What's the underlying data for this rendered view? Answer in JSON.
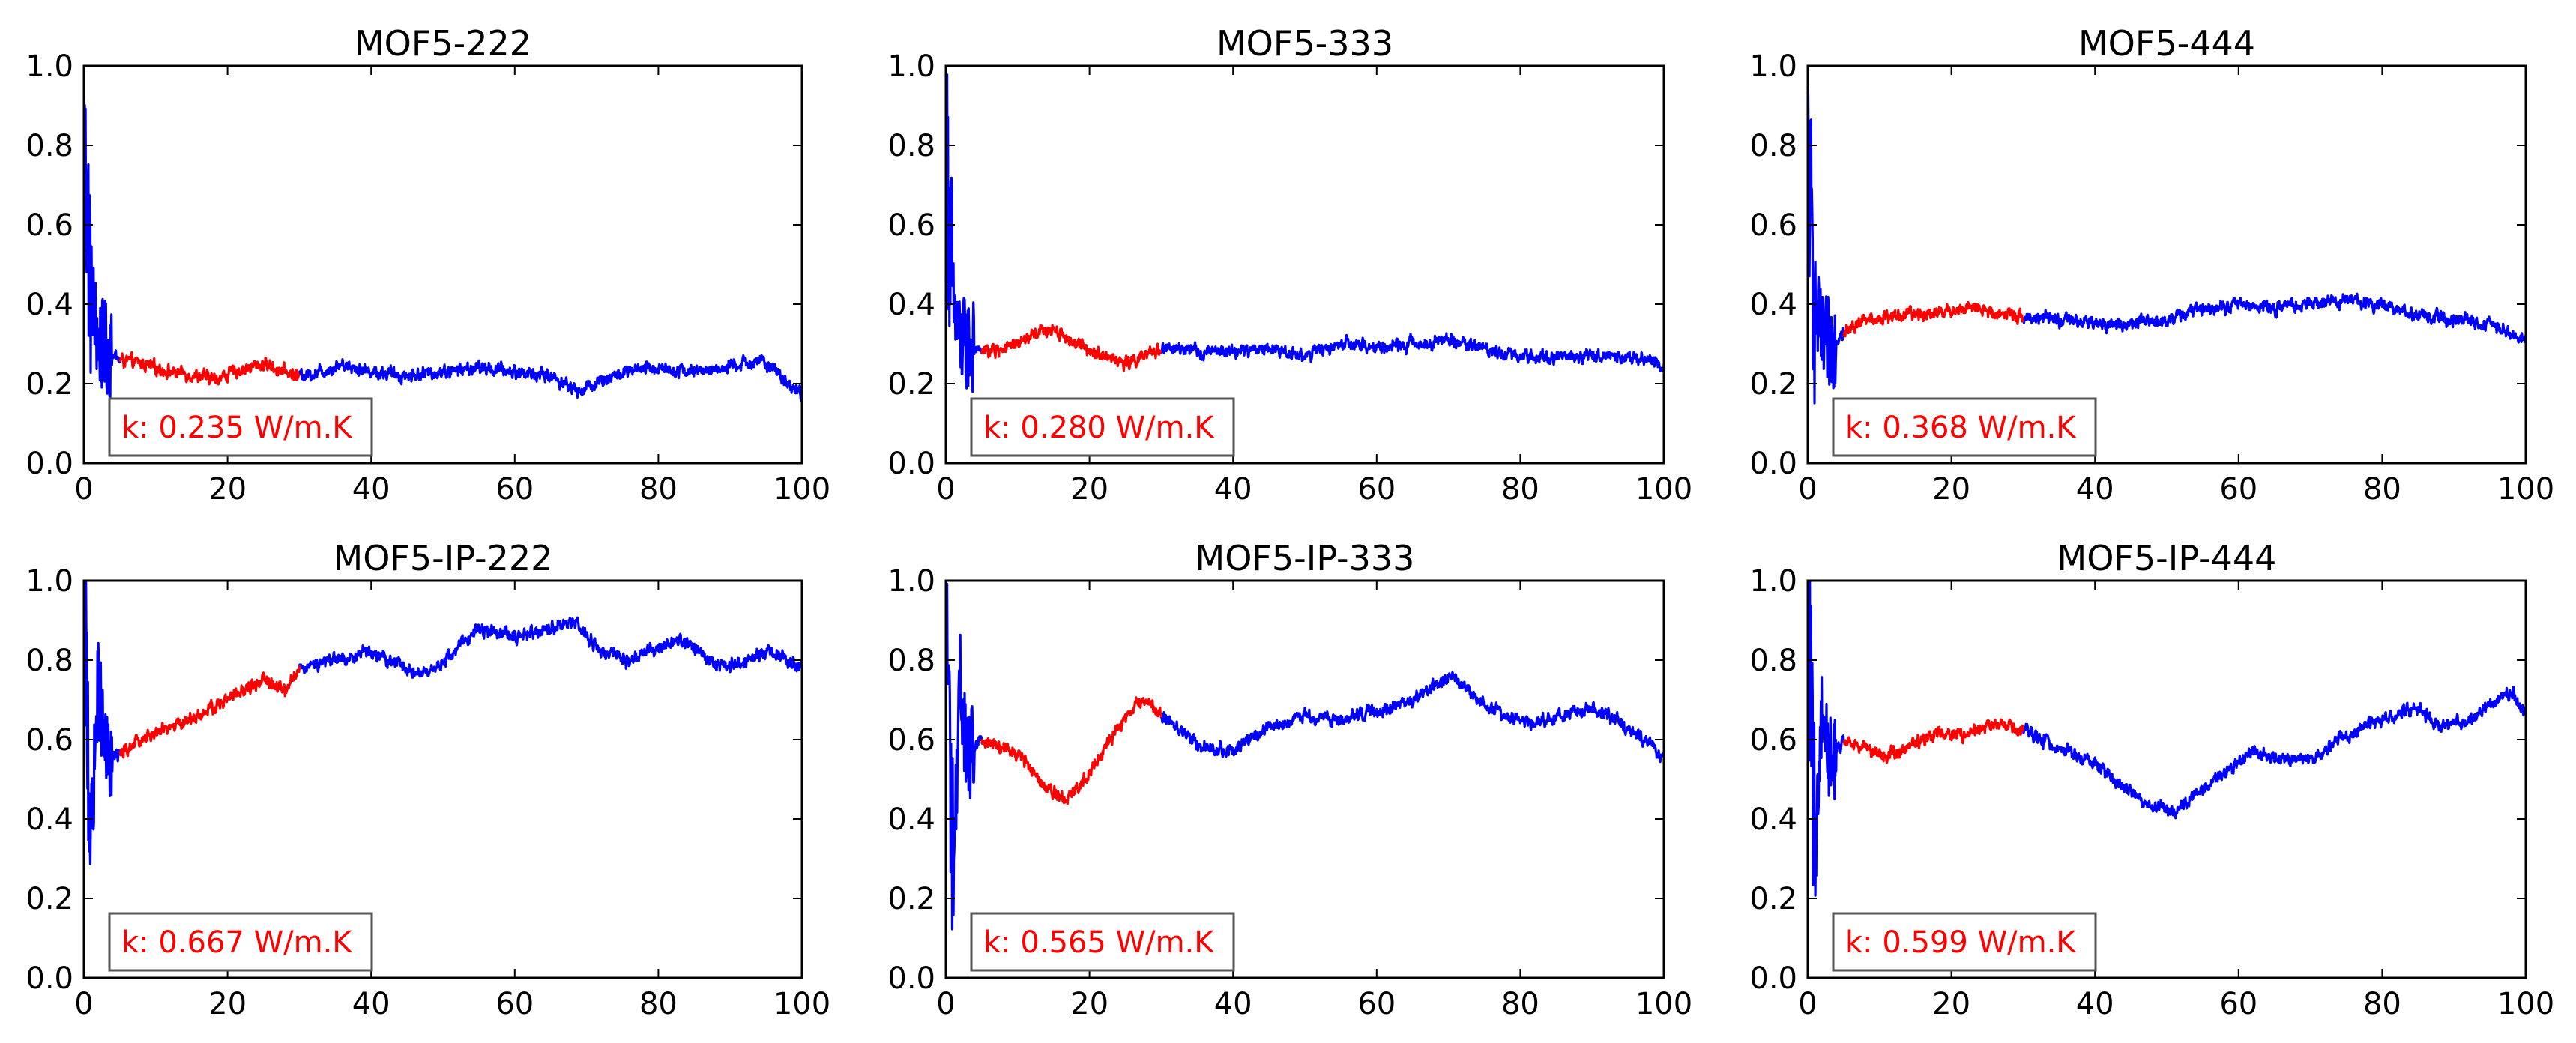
{
  "figure": {
    "background": "#ffffff"
  },
  "style": {
    "highlight_color": "#ff0000",
    "series_color": "#0000ff",
    "axes_color": "#000000",
    "box_border": "#555555"
  },
  "chart_data": [
    {
      "type": "line",
      "title": "MOF5-222",
      "xlim": [
        0,
        100
      ],
      "ylim": [
        0,
        1
      ],
      "xticks": [
        "0",
        "20",
        "40",
        "60",
        "80",
        "100"
      ],
      "yticks": [
        "0.0",
        "0.2",
        "0.4",
        "0.6",
        "0.8",
        "1.0"
      ],
      "annotation": "k: 0.235 W/m.K",
      "grid": false,
      "highlight_range": [
        5,
        30
      ],
      "points": [
        [
          0,
          0.8
        ],
        [
          1,
          0.45
        ],
        [
          2,
          0.3
        ],
        [
          3,
          0.29
        ],
        [
          5,
          0.26
        ],
        [
          8,
          0.25
        ],
        [
          12,
          0.23
        ],
        [
          16,
          0.22
        ],
        [
          18,
          0.21
        ],
        [
          21,
          0.23
        ],
        [
          25,
          0.25
        ],
        [
          28,
          0.23
        ],
        [
          30,
          0.22
        ],
        [
          33,
          0.23
        ],
        [
          36,
          0.25
        ],
        [
          40,
          0.23
        ],
        [
          45,
          0.22
        ],
        [
          50,
          0.23
        ],
        [
          55,
          0.24
        ],
        [
          60,
          0.23
        ],
        [
          65,
          0.22
        ],
        [
          69,
          0.18
        ],
        [
          72,
          0.21
        ],
        [
          76,
          0.23
        ],
        [
          80,
          0.24
        ],
        [
          85,
          0.23
        ],
        [
          90,
          0.24
        ],
        [
          94,
          0.26
        ],
        [
          97,
          0.22
        ],
        [
          100,
          0.17
        ]
      ]
    },
    {
      "type": "line",
      "title": "MOF5-333",
      "xlim": [
        0,
        100
      ],
      "ylim": [
        0,
        1
      ],
      "xticks": [
        "0",
        "20",
        "40",
        "60",
        "80",
        "100"
      ],
      "yticks": [
        "0.0",
        "0.2",
        "0.4",
        "0.6",
        "0.8",
        "1.0"
      ],
      "annotation": "k: 0.280 W/m.K",
      "grid": false,
      "highlight_range": [
        5,
        30
      ],
      "points": [
        [
          0,
          0.8
        ],
        [
          1,
          0.4
        ],
        [
          2,
          0.3
        ],
        [
          3,
          0.3
        ],
        [
          5,
          0.28
        ],
        [
          9,
          0.29
        ],
        [
          12,
          0.32
        ],
        [
          15,
          0.34
        ],
        [
          18,
          0.3
        ],
        [
          21,
          0.28
        ],
        [
          25,
          0.25
        ],
        [
          28,
          0.27
        ],
        [
          30,
          0.29
        ],
        [
          35,
          0.28
        ],
        [
          40,
          0.28
        ],
        [
          45,
          0.29
        ],
        [
          50,
          0.27
        ],
        [
          55,
          0.3
        ],
        [
          60,
          0.29
        ],
        [
          65,
          0.3
        ],
        [
          70,
          0.31
        ],
        [
          75,
          0.29
        ],
        [
          80,
          0.27
        ],
        [
          85,
          0.27
        ],
        [
          90,
          0.27
        ],
        [
          95,
          0.27
        ],
        [
          100,
          0.25
        ]
      ]
    },
    {
      "type": "line",
      "title": "MOF5-444",
      "xlim": [
        0,
        100
      ],
      "ylim": [
        0,
        1
      ],
      "xticks": [
        "0",
        "20",
        "40",
        "60",
        "80",
        "100"
      ],
      "yticks": [
        "0.0",
        "0.2",
        "0.4",
        "0.6",
        "0.8",
        "1.0"
      ],
      "annotation": "k: 0.368 W/m.K",
      "grid": false,
      "highlight_range": [
        5,
        30
      ],
      "points": [
        [
          0,
          0.78
        ],
        [
          1,
          0.4
        ],
        [
          2,
          0.3
        ],
        [
          3,
          0.3
        ],
        [
          5,
          0.33
        ],
        [
          8,
          0.36
        ],
        [
          12,
          0.37
        ],
        [
          18,
          0.38
        ],
        [
          22,
          0.39
        ],
        [
          26,
          0.38
        ],
        [
          30,
          0.37
        ],
        [
          35,
          0.36
        ],
        [
          40,
          0.35
        ],
        [
          45,
          0.35
        ],
        [
          50,
          0.36
        ],
        [
          55,
          0.39
        ],
        [
          60,
          0.4
        ],
        [
          65,
          0.39
        ],
        [
          70,
          0.4
        ],
        [
          75,
          0.41
        ],
        [
          80,
          0.4
        ],
        [
          85,
          0.37
        ],
        [
          90,
          0.36
        ],
        [
          95,
          0.35
        ],
        [
          100,
          0.31
        ]
      ]
    },
    {
      "type": "line",
      "title": "MOF5-IP-222",
      "xlim": [
        0,
        100
      ],
      "ylim": [
        0,
        1
      ],
      "xticks": [
        "0",
        "20",
        "40",
        "60",
        "80",
        "100"
      ],
      "yticks": [
        "0.0",
        "0.2",
        "0.4",
        "0.6",
        "0.8",
        "1.0"
      ],
      "annotation": "k: 0.667 W/m.K",
      "grid": false,
      "highlight_range": [
        5,
        30
      ],
      "points": [
        [
          0,
          0.95
        ],
        [
          1,
          0.35
        ],
        [
          2,
          0.75
        ],
        [
          3,
          0.55
        ],
        [
          5,
          0.56
        ],
        [
          8,
          0.6
        ],
        [
          12,
          0.63
        ],
        [
          16,
          0.66
        ],
        [
          20,
          0.7
        ],
        [
          25,
          0.75
        ],
        [
          28,
          0.72
        ],
        [
          30,
          0.78
        ],
        [
          35,
          0.8
        ],
        [
          40,
          0.82
        ],
        [
          45,
          0.78
        ],
        [
          48,
          0.76
        ],
        [
          52,
          0.83
        ],
        [
          55,
          0.88
        ],
        [
          60,
          0.86
        ],
        [
          65,
          0.88
        ],
        [
          68,
          0.9
        ],
        [
          72,
          0.82
        ],
        [
          76,
          0.8
        ],
        [
          80,
          0.83
        ],
        [
          84,
          0.85
        ],
        [
          88,
          0.78
        ],
        [
          92,
          0.8
        ],
        [
          96,
          0.82
        ],
        [
          100,
          0.78
        ]
      ]
    },
    {
      "type": "line",
      "title": "MOF5-IP-333",
      "xlim": [
        0,
        100
      ],
      "ylim": [
        0,
        1
      ],
      "xticks": [
        "0",
        "20",
        "40",
        "60",
        "80",
        "100"
      ],
      "yticks": [
        "0.0",
        "0.2",
        "0.4",
        "0.6",
        "0.8",
        "1.0"
      ],
      "annotation": "k: 0.565 W/m.K",
      "grid": false,
      "highlight_range": [
        5,
        30
      ],
      "points": [
        [
          0,
          1.0
        ],
        [
          1,
          0.25
        ],
        [
          2,
          0.75
        ],
        [
          3,
          0.55
        ],
        [
          5,
          0.6
        ],
        [
          8,
          0.58
        ],
        [
          11,
          0.55
        ],
        [
          14,
          0.48
        ],
        [
          17,
          0.45
        ],
        [
          20,
          0.52
        ],
        [
          23,
          0.6
        ],
        [
          26,
          0.68
        ],
        [
          28,
          0.7
        ],
        [
          30,
          0.66
        ],
        [
          33,
          0.62
        ],
        [
          36,
          0.58
        ],
        [
          40,
          0.57
        ],
        [
          45,
          0.63
        ],
        [
          50,
          0.66
        ],
        [
          55,
          0.65
        ],
        [
          60,
          0.67
        ],
        [
          65,
          0.7
        ],
        [
          70,
          0.76
        ],
        [
          74,
          0.7
        ],
        [
          78,
          0.66
        ],
        [
          82,
          0.64
        ],
        [
          86,
          0.66
        ],
        [
          90,
          0.68
        ],
        [
          95,
          0.63
        ],
        [
          100,
          0.56
        ]
      ]
    },
    {
      "type": "line",
      "title": "MOF5-IP-444",
      "xlim": [
        0,
        100
      ],
      "ylim": [
        0,
        1
      ],
      "xticks": [
        "0",
        "20",
        "40",
        "60",
        "80",
        "100"
      ],
      "yticks": [
        "0.0",
        "0.2",
        "0.4",
        "0.6",
        "0.8",
        "1.0"
      ],
      "annotation": "k: 0.599 W/m.K",
      "grid": false,
      "highlight_range": [
        5,
        30
      ],
      "points": [
        [
          0,
          0.95
        ],
        [
          1,
          0.3
        ],
        [
          2,
          0.7
        ],
        [
          3,
          0.55
        ],
        [
          5,
          0.6
        ],
        [
          8,
          0.58
        ],
        [
          11,
          0.56
        ],
        [
          14,
          0.58
        ],
        [
          18,
          0.62
        ],
        [
          22,
          0.61
        ],
        [
          26,
          0.64
        ],
        [
          30,
          0.62
        ],
        [
          35,
          0.58
        ],
        [
          40,
          0.54
        ],
        [
          44,
          0.48
        ],
        [
          48,
          0.43
        ],
        [
          51,
          0.42
        ],
        [
          54,
          0.46
        ],
        [
          58,
          0.52
        ],
        [
          62,
          0.57
        ],
        [
          66,
          0.55
        ],
        [
          70,
          0.55
        ],
        [
          74,
          0.6
        ],
        [
          78,
          0.64
        ],
        [
          82,
          0.66
        ],
        [
          85,
          0.68
        ],
        [
          88,
          0.63
        ],
        [
          92,
          0.65
        ],
        [
          95,
          0.68
        ],
        [
          98,
          0.72
        ],
        [
          100,
          0.66
        ]
      ]
    }
  ]
}
